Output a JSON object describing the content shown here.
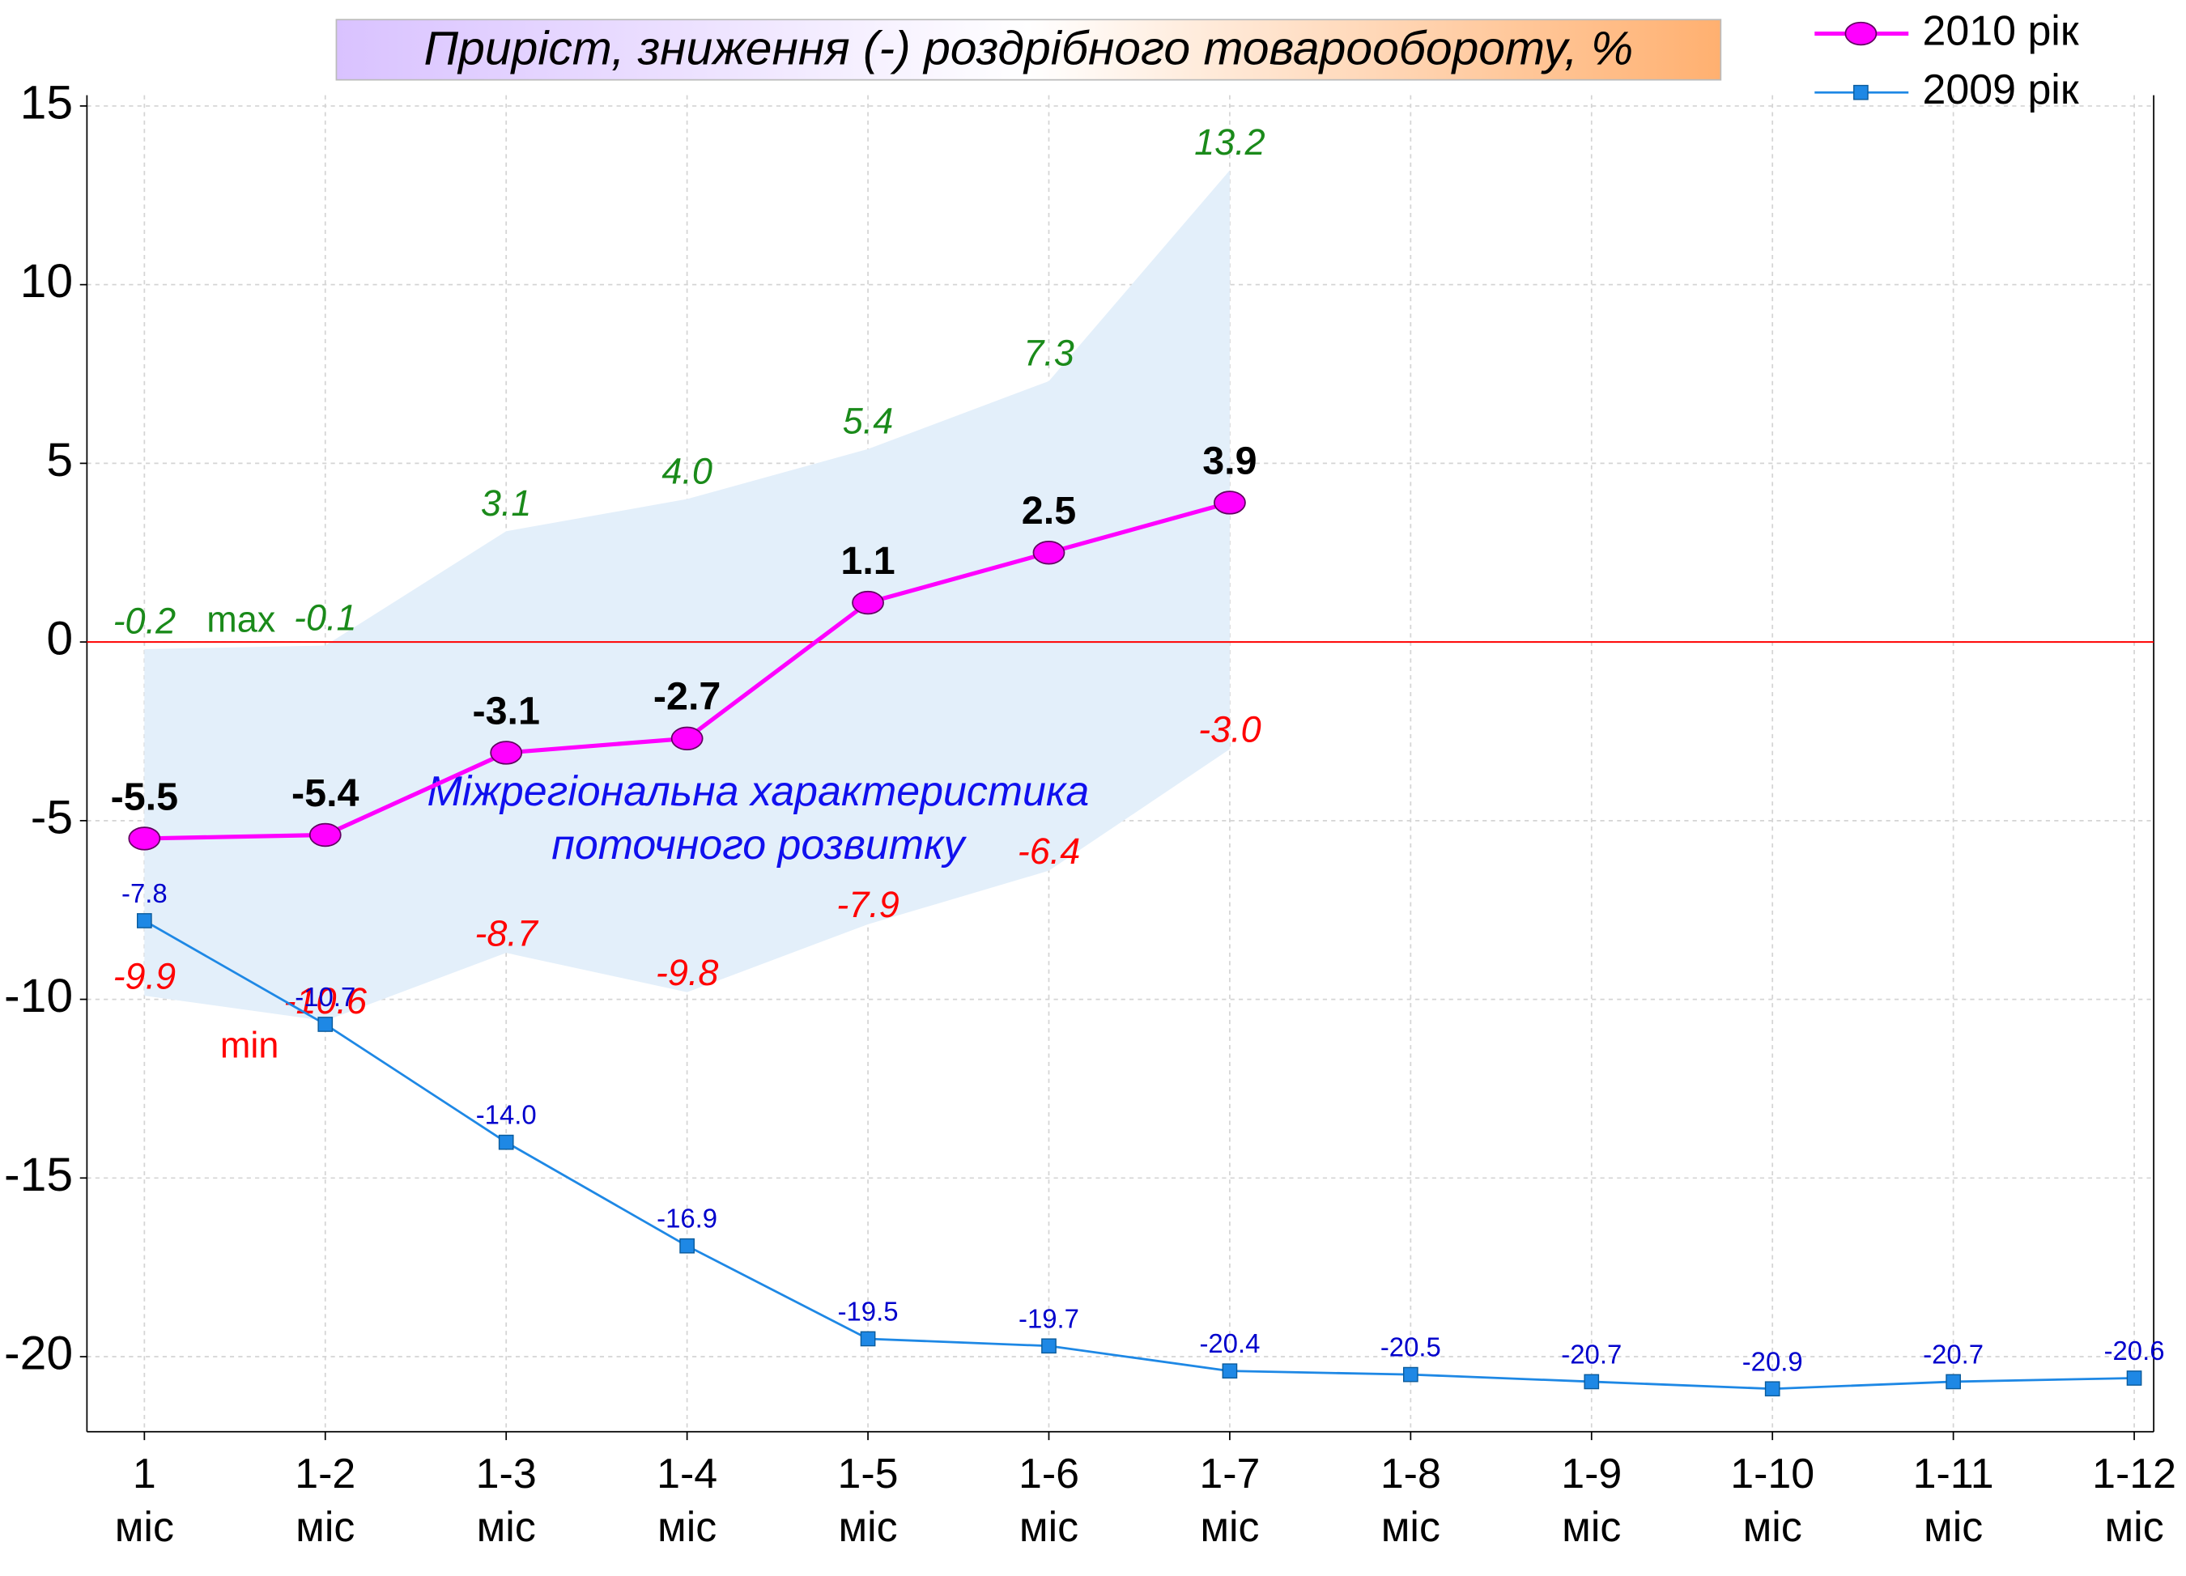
{
  "chart_data": {
    "type": "line",
    "title": "Приріст, зниження (-) роздрібного товарообороту, %",
    "categories": [
      "1 міс",
      "1-2 міс",
      "1-3 міс",
      "1-4 міс",
      "1-5 міс",
      "1-6 міс",
      "1-7 міс",
      "1-8 міс",
      "1-9 міс",
      "1-10 міс",
      "1-11 міс",
      "1-12 міс"
    ],
    "series": [
      {
        "name": "2010 рік",
        "color": "#ff00ff",
        "marker": "ellipse",
        "values": [
          -5.5,
          -5.4,
          -3.1,
          -2.7,
          1.1,
          2.5,
          3.9,
          null,
          null,
          null,
          null,
          null
        ]
      },
      {
        "name": "2009 рік",
        "color": "#1e88e5",
        "marker": "square",
        "values": [
          -7.8,
          -10.7,
          -14.0,
          -16.9,
          -19.5,
          -19.7,
          -20.4,
          -20.5,
          -20.7,
          -20.9,
          -20.7,
          -20.6
        ],
        "value_labels": [
          "-7.8",
          "-10.7",
          "-14.0",
          "-16.9",
          "-19.5",
          "-19.7",
          "-20.4",
          "-20.5",
          "-20.7",
          "-20.9",
          "-20.7",
          "-20.6"
        ]
      }
    ],
    "band": {
      "label": [
        "Міжрегіональна характеристика",
        "поточного розвитку"
      ],
      "color": "#e3effa",
      "max": {
        "name": "max",
        "color": "#1a8a1a",
        "values": [
          -0.2,
          -0.1,
          3.1,
          4.0,
          5.4,
          7.3,
          13.2
        ],
        "value_labels": [
          "-0.2",
          "-0.1",
          "3.1",
          "4.0",
          "5.4",
          "7.3",
          "13.2"
        ]
      },
      "min": {
        "name": "min",
        "color": "#ff0000",
        "values": [
          -9.9,
          -10.6,
          -8.7,
          -9.8,
          -7.9,
          -6.4,
          -3.0
        ],
        "value_labels": [
          "-9.9",
          "-10.6",
          "-8.7",
          "-9.8",
          "-7.9",
          "-6.4",
          "-3.0"
        ]
      }
    },
    "ylim": [
      -22.1,
      15.3
    ],
    "yticks": [
      -20,
      -15,
      -10,
      -5,
      0,
      5,
      10,
      15
    ],
    "grid": true,
    "zero_line_color": "#ff0000",
    "legend": "top-right"
  }
}
